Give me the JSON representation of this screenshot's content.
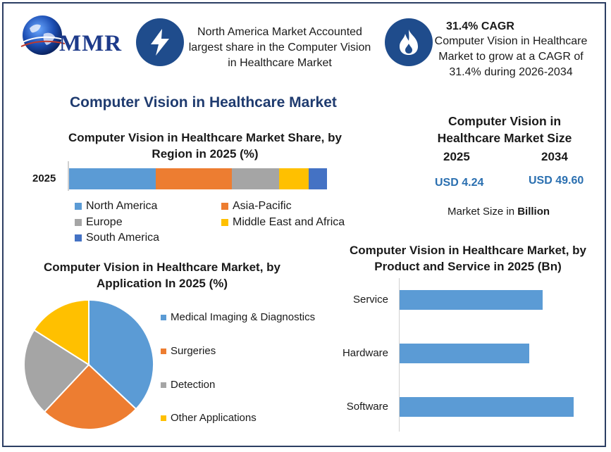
{
  "logo": {
    "text": "MMR"
  },
  "info_box_1": {
    "icon": "lightning-icon",
    "text": "North America Market Accounted largest share in the Computer Vision in Healthcare Market"
  },
  "info_box_2": {
    "icon": "flame-icon",
    "title": "31.4% CAGR",
    "text": "Computer Vision in Healthcare Market to grow at a CAGR of 31.4% during 2026-2034"
  },
  "main_title": "Computer Vision in Healthcare Market",
  "market_size": {
    "title": "Computer Vision in Healthcare Market Size",
    "years": [
      "2025",
      "2034"
    ],
    "values": [
      "USD 4.24",
      "USD 49.60"
    ],
    "unit_prefix": "Market Size in",
    "unit_bold": "Billion"
  },
  "colors": {
    "blue": "#5b9bd5",
    "orange": "#ed7d31",
    "gray": "#a5a5a5",
    "yellow": "#ffc000",
    "dark_blue": "#4472c4",
    "icon_bg": "#1f4c8c"
  },
  "chart_data": [
    {
      "type": "bar",
      "orientation": "horizontal-stacked",
      "title": "Computer Vision in Healthcare Market Share, by Region in 2025 (%)",
      "categories": [
        "2025"
      ],
      "series": [
        {
          "name": "North America",
          "values": [
            33.5
          ],
          "color": "#5b9bd5"
        },
        {
          "name": "Asia-Pacific",
          "values": [
            29.5
          ],
          "color": "#ed7d31"
        },
        {
          "name": "Europe",
          "values": [
            18.5
          ],
          "color": "#a5a5a5"
        },
        {
          "name": "Middle East and Africa",
          "values": [
            11.3
          ],
          "color": "#ffc000"
        },
        {
          "name": "South America",
          "values": [
            7.2
          ],
          "color": "#4472c4"
        }
      ],
      "legend": "bottom"
    },
    {
      "type": "pie",
      "title": "Computer Vision in Healthcare Market, by Application In 2025 (%)",
      "labels": [
        "Medical Imaging & Diagnostics",
        "Surgeries",
        "Detection",
        "Other Applications"
      ],
      "values": [
        37,
        25,
        22,
        16
      ],
      "colors": [
        "#5b9bd5",
        "#ed7d31",
        "#a5a5a5",
        "#ffc000"
      ],
      "legend": "right"
    },
    {
      "type": "bar",
      "orientation": "horizontal",
      "title": "Computer Vision in Healthcare Market, by Product and Service in 2025 (Bn)",
      "categories": [
        "Service",
        "Hardware",
        "Software"
      ],
      "values": [
        1.23,
        1.12,
        1.5
      ],
      "color": "#5b9bd5",
      "xlim": [
        0,
        1.7
      ]
    }
  ]
}
